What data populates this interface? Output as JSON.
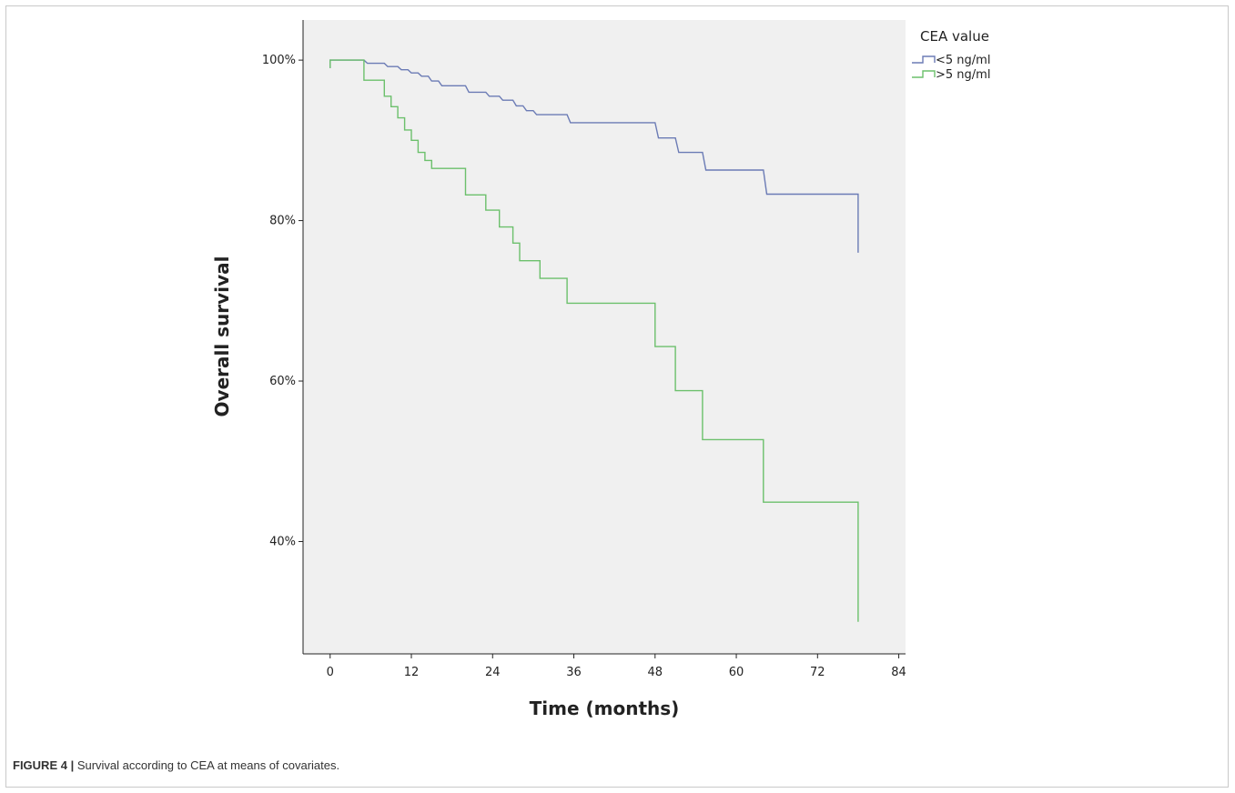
{
  "caption": {
    "label": "FIGURE 4 |",
    "text": " Survival according to CEA at means of covariates."
  },
  "chart_data": {
    "type": "line",
    "subtype": "kaplan-meier-step",
    "title": "",
    "xlabel": "Time (months)",
    "ylabel": "Overall survival",
    "xlim": [
      -4,
      85
    ],
    "ylim": [
      26,
      105
    ],
    "xticks": [
      0,
      12,
      24,
      36,
      48,
      60,
      72,
      84
    ],
    "yticks": [
      40,
      60,
      80,
      100
    ],
    "yticks_format": "percent",
    "grid": false,
    "plot_background": "#f0f0f0",
    "legend": {
      "title": "CEA value",
      "placement": "outside-top-right"
    },
    "series": [
      {
        "name": "<5 ng/ml",
        "color": "#6b7bb5",
        "step_points": [
          [
            0,
            99
          ],
          [
            0,
            100
          ],
          [
            5,
            100
          ],
          [
            5.5,
            99.6
          ],
          [
            8,
            99.6
          ],
          [
            8.5,
            99.2
          ],
          [
            10,
            99.2
          ],
          [
            10.5,
            98.8
          ],
          [
            11.5,
            98.8
          ],
          [
            12,
            98.4
          ],
          [
            13,
            98.4
          ],
          [
            13.5,
            98
          ],
          [
            14.5,
            98
          ],
          [
            15,
            97.4
          ],
          [
            16,
            97.4
          ],
          [
            16.5,
            96.8
          ],
          [
            20,
            96.8
          ],
          [
            20.5,
            96
          ],
          [
            23,
            96
          ],
          [
            23.5,
            95.5
          ],
          [
            25,
            95.5
          ],
          [
            25.5,
            95
          ],
          [
            27,
            95
          ],
          [
            27.5,
            94.3
          ],
          [
            28.5,
            94.3
          ],
          [
            29,
            93.7
          ],
          [
            30,
            93.7
          ],
          [
            30.5,
            93.2
          ],
          [
            35,
            93.2
          ],
          [
            35.5,
            92.2
          ],
          [
            48,
            92.2
          ],
          [
            48.5,
            90.3
          ],
          [
            51,
            90.3
          ],
          [
            51.5,
            88.5
          ],
          [
            55,
            88.5
          ],
          [
            55.5,
            86.3
          ],
          [
            64,
            86.3
          ],
          [
            64.5,
            83.3
          ],
          [
            78,
            83.3
          ],
          [
            78,
            76
          ]
        ]
      },
      {
        "name": ">5 ng/ml",
        "color": "#6cc06c",
        "step_points": [
          [
            0,
            99
          ],
          [
            0,
            100
          ],
          [
            5,
            100
          ],
          [
            5,
            97.5
          ],
          [
            8,
            97.5
          ],
          [
            8,
            95.5
          ],
          [
            9,
            95.5
          ],
          [
            9,
            94.2
          ],
          [
            10,
            94.2
          ],
          [
            10,
            92.8
          ],
          [
            11,
            92.8
          ],
          [
            11,
            91.3
          ],
          [
            12,
            91.3
          ],
          [
            12,
            90
          ],
          [
            13,
            90
          ],
          [
            13,
            88.5
          ],
          [
            14,
            88.5
          ],
          [
            14,
            87.5
          ],
          [
            15,
            87.5
          ],
          [
            15,
            86.5
          ],
          [
            20,
            86.5
          ],
          [
            20,
            83.2
          ],
          [
            23,
            83.2
          ],
          [
            23,
            81.3
          ],
          [
            25,
            81.3
          ],
          [
            25,
            79.2
          ],
          [
            27,
            79.2
          ],
          [
            27,
            77.2
          ],
          [
            28,
            77.2
          ],
          [
            28,
            75
          ],
          [
            31,
            75
          ],
          [
            31,
            72.8
          ],
          [
            35,
            72.8
          ],
          [
            35,
            69.7
          ],
          [
            48,
            69.7
          ],
          [
            48,
            64.3
          ],
          [
            51,
            64.3
          ],
          [
            51,
            58.8
          ],
          [
            55,
            58.8
          ],
          [
            55,
            52.7
          ],
          [
            64,
            52.7
          ],
          [
            64,
            44.9
          ],
          [
            78,
            44.9
          ],
          [
            78,
            30
          ]
        ]
      }
    ]
  }
}
